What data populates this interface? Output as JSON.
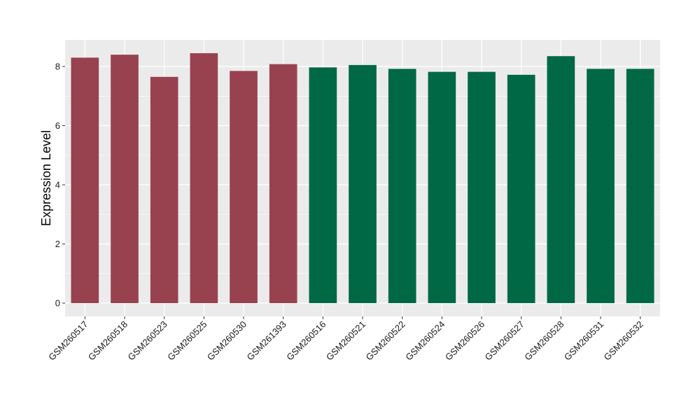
{
  "chart_data": {
    "type": "bar",
    "title": "",
    "xlabel": "",
    "ylabel": "Expression Level",
    "ylim": [
      -0.45,
      8.9
    ],
    "yticks": [
      0,
      2,
      4,
      6,
      8
    ],
    "grid": true,
    "background": "#ebebeb",
    "grid_color": "#ffffff",
    "categories": [
      "GSM260517",
      "GSM260518",
      "GSM260523",
      "GSM260525",
      "GSM260530",
      "GSM261393",
      "GSM260516",
      "GSM260521",
      "GSM260522",
      "GSM260524",
      "GSM260526",
      "GSM260527",
      "GSM260528",
      "GSM260531",
      "GSM260532"
    ],
    "values": [
      8.3,
      8.4,
      7.65,
      8.45,
      7.85,
      8.08,
      7.97,
      8.05,
      7.92,
      7.82,
      7.82,
      7.72,
      8.35,
      7.92,
      7.92
    ],
    "group_colors": [
      "#99424f",
      "#99424f",
      "#99424f",
      "#99424f",
      "#99424f",
      "#99424f",
      "#006845",
      "#006845",
      "#006845",
      "#006845",
      "#006845",
      "#006845",
      "#006845",
      "#006845",
      "#006845"
    ]
  }
}
